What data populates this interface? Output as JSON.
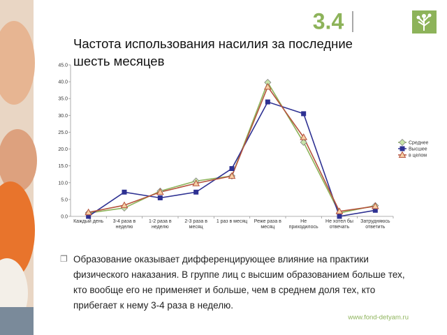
{
  "header": {
    "section": "3.4"
  },
  "chart_data": {
    "type": "line",
    "title": "Частота использования насилия за последние шесть месяцев",
    "categories": [
      "Каждый день",
      "3-4 раза в неделю",
      "1-2 раза в неделю",
      "2-3 раза в месяц",
      "1 раз в месяц",
      "Реже раза в месяц",
      "Не приходилось",
      "Не хотел бы отвечать",
      "Затрудняюсь ответить"
    ],
    "series": [
      {
        "name": "Среднее",
        "color": "#8db35a",
        "marker": "diamond",
        "values": [
          1.0,
          2.5,
          7.5,
          10.5,
          12.0,
          39.8,
          22.0,
          1.0,
          3.2
        ]
      },
      {
        "name": "Высшее",
        "color": "#2e3192",
        "marker": "square",
        "values": [
          0.0,
          7.2,
          5.5,
          7.2,
          14.2,
          34.0,
          30.5,
          0.0,
          1.8
        ]
      },
      {
        "name": "в целом",
        "color": "#b5533c",
        "marker": "triangle",
        "values": [
          1.2,
          3.3,
          7.2,
          9.8,
          12.0,
          38.5,
          23.5,
          1.5,
          3.0
        ]
      }
    ],
    "ylim": [
      0,
      45
    ],
    "yticks": [
      {
        "value": 0,
        "label": "0.0"
      },
      {
        "value": 5,
        "label": "5.0"
      },
      {
        "value": 10,
        "label": "10.0"
      },
      {
        "value": 15,
        "label": "15.0"
      },
      {
        "value": 20,
        "label": "20.0"
      },
      {
        "value": 25,
        "label": "25.0"
      },
      {
        "value": 30,
        "label": "30.0"
      },
      {
        "value": 35,
        "label": "35.0"
      },
      {
        "value": 40,
        "label": "40.0"
      },
      {
        "value": 45,
        "label": "45.0"
      }
    ],
    "grid": false,
    "legend": "right"
  },
  "text": {
    "paragraph": "Образование оказывает дифференцирующее влияние на практики физического наказания. В группе лиц с высшим образованием больше тех, кто вообще его не применяет и больше, чем в среднем доля тех, кто прибегает к нему 3-4 раза в неделю."
  },
  "footer": {
    "url": "www.fond-detyam.ru"
  }
}
